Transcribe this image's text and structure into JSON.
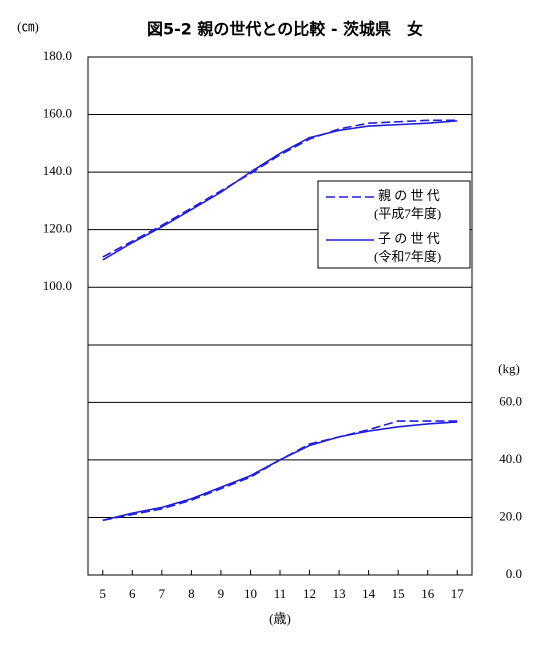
{
  "chart_data": {
    "type": "line",
    "title": "図5-2 親の世代との比較 - 茨城県　女",
    "y_unit": "(㎝)",
    "y2_unit": "(kg)",
    "x_label": "(歳)",
    "x": [
      5,
      6,
      7,
      8,
      9,
      10,
      11,
      12,
      13,
      14,
      15,
      16,
      17
    ],
    "xlim": [
      4.5,
      17.5
    ],
    "xticks": [
      5,
      6,
      7,
      8,
      9,
      10,
      11,
      12,
      13,
      14,
      15,
      16,
      17
    ],
    "ylim": [
      0,
      180
    ],
    "yticks": [
      {
        "value": 100,
        "label": "100.0"
      },
      {
        "value": 120,
        "label": "120.0"
      },
      {
        "value": 140,
        "label": "140.0"
      },
      {
        "value": 160,
        "label": "160.0"
      },
      {
        "value": 180,
        "label": "180.0"
      }
    ],
    "y2lim": [
      0,
      180
    ],
    "y2ticks": [
      {
        "value": 0,
        "label": "0.0"
      },
      {
        "value": 20,
        "label": "20.0"
      },
      {
        "value": 40,
        "label": "40.0"
      },
      {
        "value": 60,
        "label": "60.0"
      }
    ],
    "grid": true,
    "series": [
      {
        "name": "親 の 世 代",
        "note": "(平成7年度)",
        "color": "#1f1fe0",
        "dashed": true,
        "values": [
          110.5,
          116,
          121.5,
          127.5,
          133.5,
          139.5,
          146,
          151.5,
          155,
          157,
          157.5,
          158,
          158
        ]
      },
      {
        "name": "子 の 世 代",
        "note": "(令和7年度)",
        "color": "#1f1fe0",
        "dashed": false,
        "values": [
          109.5,
          115.5,
          121,
          127,
          133,
          140,
          146.5,
          152,
          154.5,
          156,
          156.5,
          157,
          157.8
        ]
      },
      {
        "axis": "y2",
        "color": "#1f1fe0",
        "dashed": true,
        "values": [
          19,
          21,
          23,
          26,
          30,
          34,
          40,
          45.5,
          48,
          50.5,
          53.5,
          53.5,
          53.5
        ]
      },
      {
        "axis": "y2",
        "color": "#1f1fe0",
        "dashed": false,
        "values": [
          19,
          21.5,
          23.5,
          26.5,
          30.5,
          34.5,
          40,
          45,
          48,
          50,
          51.5,
          52.5,
          53.2
        ]
      }
    ]
  }
}
